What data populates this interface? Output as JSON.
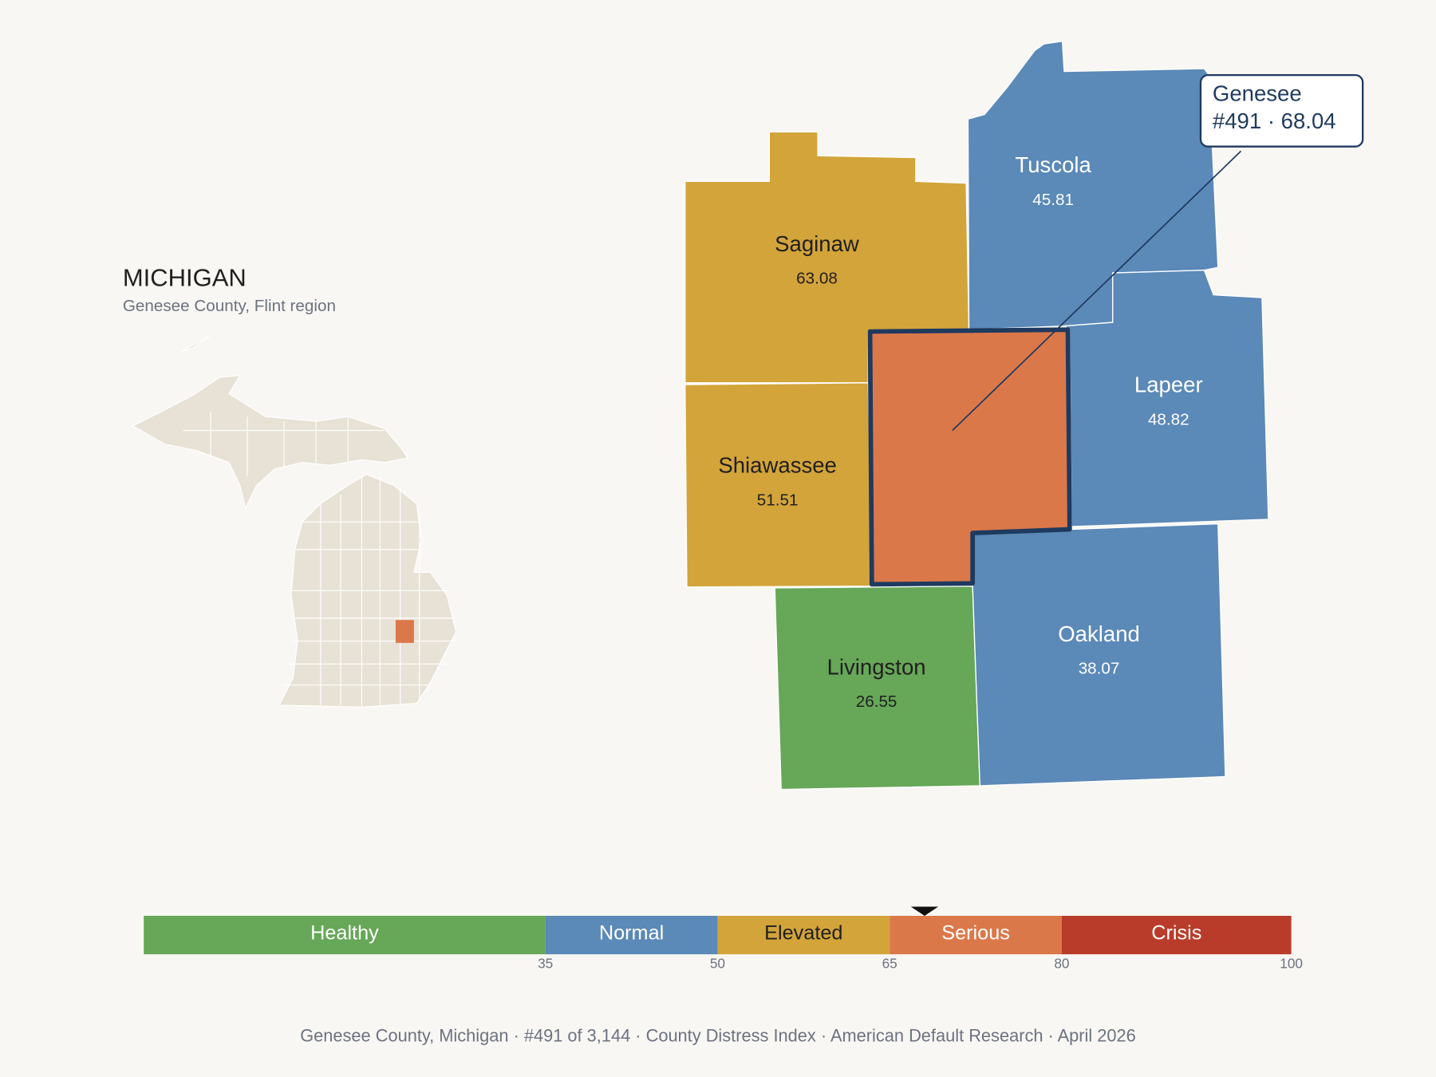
{
  "header": {
    "title": "MICHIGAN",
    "subtitle": "Genesee County, Flint region"
  },
  "counties": [
    {
      "name": "Saginaw",
      "score": 63.08,
      "color": "#d3a43a"
    },
    {
      "name": "Tuscola",
      "score": 45.81,
      "color": "#5b89b8"
    },
    {
      "name": "Lapeer",
      "score": 48.82,
      "color": "#5b89b8"
    },
    {
      "name": "Shiawassee",
      "score": 51.51,
      "color": "#d3a43a"
    },
    {
      "name": "Livingston",
      "score": 26.55,
      "color": "#67a758"
    },
    {
      "name": "Oakland",
      "score": 38.07,
      "color": "#5b89b8"
    }
  ],
  "selected": {
    "name": "Genesee",
    "label": "#491 · 68.04",
    "score": 68.04,
    "color": "#db784a"
  },
  "scale": {
    "xlim": [
      0,
      100
    ],
    "bands": [
      {
        "label": "Healthy",
        "to": 35,
        "color": "#67a758"
      },
      {
        "label": "Normal",
        "to": 50,
        "color": "#5b89b8"
      },
      {
        "label": "Elevated",
        "to": 65,
        "color": "#d3a43a"
      },
      {
        "label": "Serious",
        "to": 80,
        "color": "#db784a"
      },
      {
        "label": "Crisis",
        "to": 100,
        "color": "#b93c2b"
      }
    ]
  },
  "footer": "Genesee County, Michigan  ·  #491 of 3,144  ·  County Distress Index  ·  American Default Research  ·  April 2026"
}
